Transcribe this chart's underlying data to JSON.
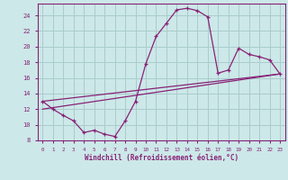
{
  "xlabel": "Windchill (Refroidissement éolien,°C)",
  "bg_color": "#cce8e8",
  "grid_color": "#aacccc",
  "line_color": "#882277",
  "xlim": [
    -0.5,
    23.5
  ],
  "ylim": [
    8,
    25.5
  ],
  "yticks": [
    8,
    10,
    12,
    14,
    16,
    18,
    20,
    22,
    24
  ],
  "xticks": [
    0,
    1,
    2,
    3,
    4,
    5,
    6,
    7,
    8,
    9,
    10,
    11,
    12,
    13,
    14,
    15,
    16,
    17,
    18,
    19,
    20,
    21,
    22,
    23
  ],
  "curve1_x": [
    0,
    1,
    2,
    3,
    4,
    5,
    6,
    7,
    8,
    9,
    10,
    11,
    12,
    13,
    14,
    15,
    16,
    17,
    18,
    19,
    20,
    21,
    22,
    23
  ],
  "curve1_y": [
    13.0,
    12.0,
    11.2,
    10.5,
    9.0,
    9.3,
    8.8,
    8.5,
    10.5,
    13.0,
    17.8,
    21.3,
    23.0,
    24.7,
    24.9,
    24.6,
    23.8,
    16.6,
    17.0,
    19.8,
    19.0,
    18.7,
    18.3,
    16.5
  ],
  "trend1_x": [
    0,
    23
  ],
  "trend1_y": [
    13.0,
    16.5
  ],
  "trend2_x": [
    0,
    23
  ],
  "trend2_y": [
    12.0,
    16.5
  ]
}
